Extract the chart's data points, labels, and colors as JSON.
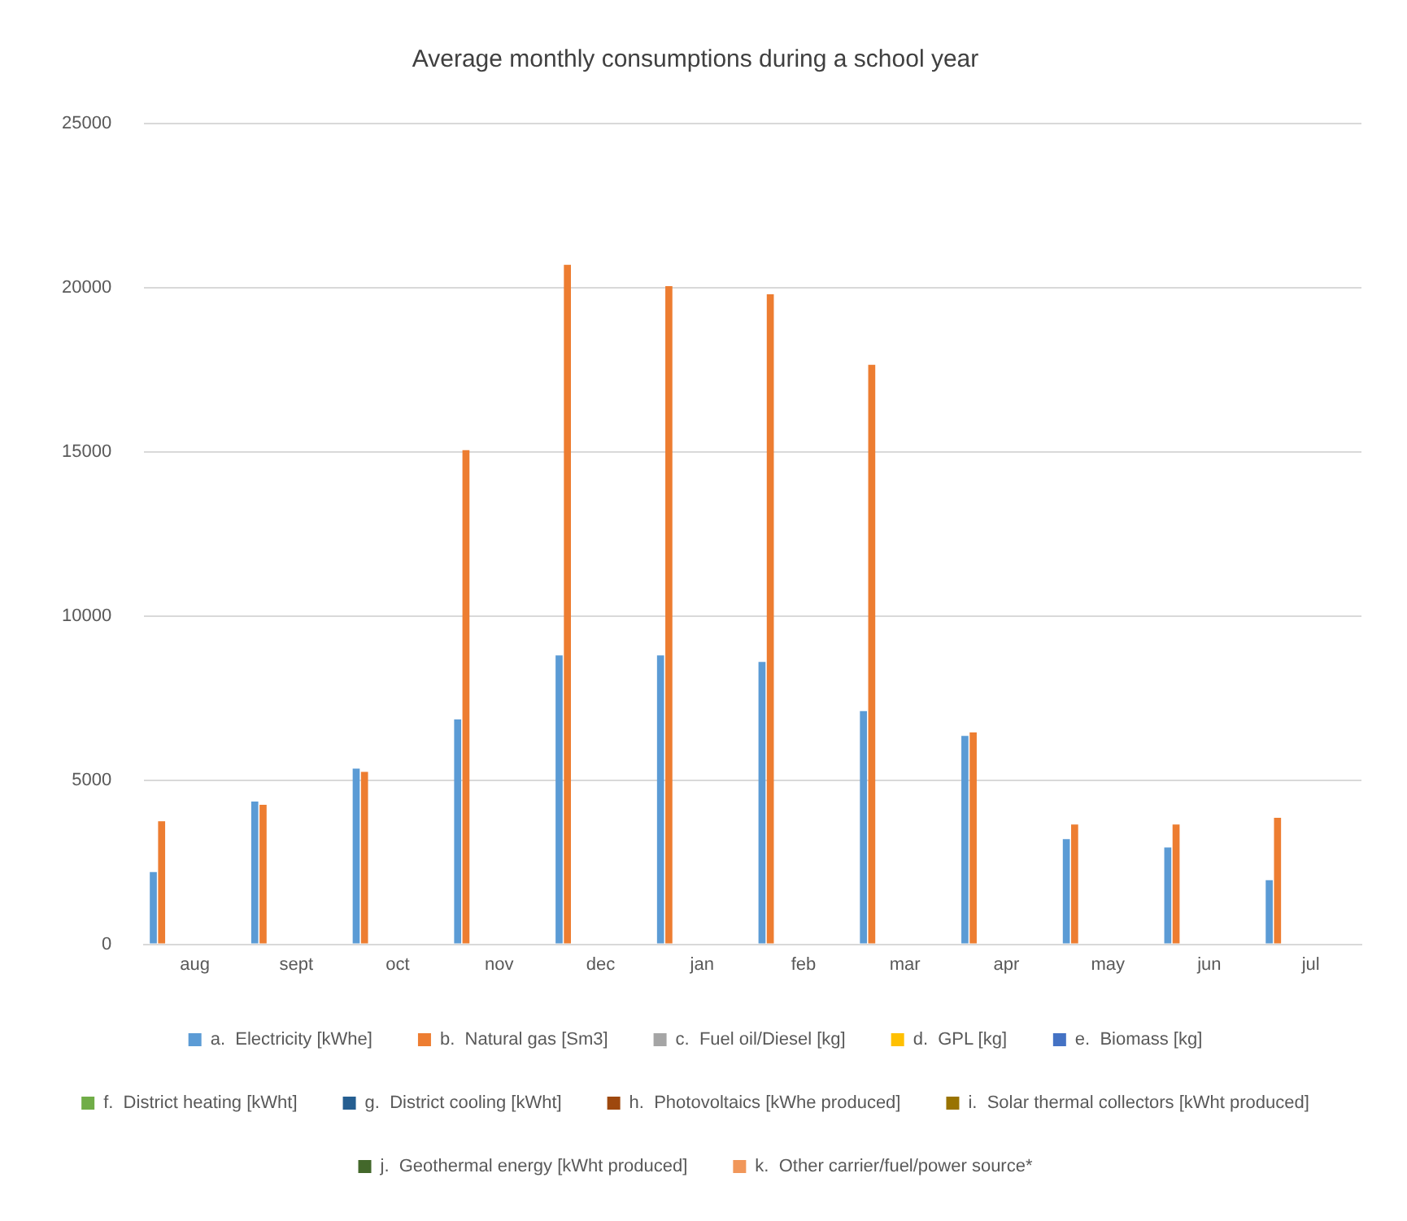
{
  "chart_data": {
    "type": "bar",
    "title": "Average monthly consumptions during a school year",
    "categories": [
      "aug",
      "sept",
      "oct",
      "nov",
      "dec",
      "jan",
      "feb",
      "mar",
      "apr",
      "may",
      "jun",
      "jul"
    ],
    "series": [
      {
        "name": "a.  Electricity [kWhe]",
        "color": "#5b9bd5",
        "values": [
          2200,
          4350,
          5350,
          6850,
          8800,
          8800,
          8600,
          7100,
          6350,
          3200,
          2950,
          1950
        ]
      },
      {
        "name": "b.  Natural gas [Sm3]",
        "color": "#ed7d31",
        "values": [
          3750,
          4250,
          5250,
          15050,
          20700,
          20050,
          19800,
          17650,
          6450,
          3650,
          3650,
          3850
        ]
      },
      {
        "name": "c.  Fuel oil/Diesel [kg]",
        "color": "#a5a5a5",
        "values": [
          null,
          null,
          null,
          null,
          null,
          null,
          null,
          null,
          null,
          null,
          null,
          null
        ]
      },
      {
        "name": "d.  GPL [kg]",
        "color": "#ffc000",
        "values": [
          null,
          null,
          null,
          null,
          null,
          null,
          null,
          null,
          null,
          null,
          null,
          null
        ]
      },
      {
        "name": "e.  Biomass [kg]",
        "color": "#4472c4",
        "values": [
          null,
          null,
          null,
          null,
          null,
          null,
          null,
          null,
          null,
          null,
          null,
          null
        ]
      },
      {
        "name": "f.  District heating [kWht]",
        "color": "#70ad47",
        "values": [
          null,
          null,
          null,
          null,
          null,
          null,
          null,
          null,
          null,
          null,
          null,
          null
        ]
      },
      {
        "name": "g.  District cooling [kWht]",
        "color": "#255e91",
        "values": [
          null,
          null,
          null,
          null,
          null,
          null,
          null,
          null,
          null,
          null,
          null,
          null
        ]
      },
      {
        "name": "h.  Photovoltaics [kWhe produced]",
        "color": "#9e480e",
        "values": [
          null,
          null,
          null,
          null,
          null,
          null,
          null,
          null,
          null,
          null,
          null,
          null
        ]
      },
      {
        "name": "i.  Solar thermal collectors [kWht produced]",
        "color": "#997300",
        "values": [
          null,
          null,
          null,
          null,
          null,
          null,
          null,
          null,
          null,
          null,
          null,
          null
        ]
      },
      {
        "name": "j.  Geothermal energy [kWht produced]",
        "color": "#43682b",
        "values": [
          null,
          null,
          null,
          null,
          null,
          null,
          null,
          null,
          null,
          null,
          null,
          null
        ]
      },
      {
        "name": "k.  Other carrier/fuel/power source*",
        "color": "#f1975a",
        "values": [
          null,
          null,
          null,
          null,
          null,
          null,
          null,
          null,
          null,
          null,
          null,
          null
        ]
      }
    ],
    "ylim": [
      0,
      25000
    ],
    "yticks": [
      0,
      5000,
      10000,
      15000,
      20000,
      25000
    ],
    "grid": "y",
    "legend": "bottom"
  }
}
